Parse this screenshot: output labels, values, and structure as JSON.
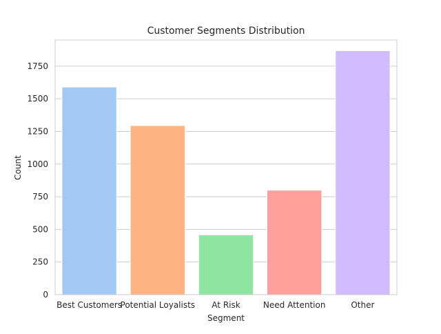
{
  "chart_data": {
    "type": "bar",
    "title": "Customer Segments Distribution",
    "xlabel": "Segment",
    "ylabel": "Count",
    "categories": [
      "Best Customers",
      "Potential Loyalists",
      "At Risk",
      "Need Attention",
      "Other"
    ],
    "values": [
      1590,
      1295,
      458,
      800,
      1868
    ],
    "colors": [
      "#a1c9f4",
      "#ffb482",
      "#8de5a1",
      "#ff9f9b",
      "#d0bbff"
    ],
    "ylim": [
      0,
      1950
    ],
    "yticks": [
      0,
      250,
      500,
      750,
      1000,
      1250,
      1500,
      1750
    ],
    "grid": "horizontal",
    "style": {
      "grid_color": "#cccccc",
      "spine_color": "#cccccc",
      "text_color": "#262626"
    }
  }
}
